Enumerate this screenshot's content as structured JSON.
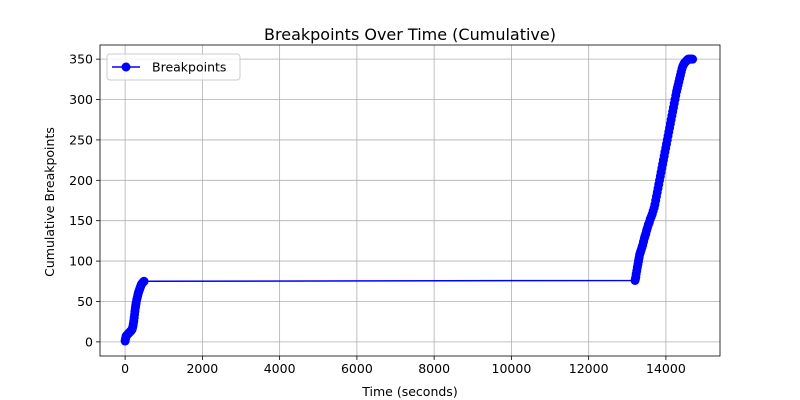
{
  "chart_data": {
    "type": "line",
    "title": "Breakpoints Over Time (Cumulative)",
    "xlabel": "Time (seconds)",
    "ylabel": "Cumulative Breakpoints",
    "xlim": [
      -650,
      15400
    ],
    "ylim": [
      -17.5,
      367.5
    ],
    "x_ticks": [
      0,
      2000,
      4000,
      6000,
      8000,
      10000,
      12000,
      14000
    ],
    "y_ticks": [
      0,
      50,
      100,
      150,
      200,
      250,
      300,
      350
    ],
    "grid": true,
    "legend": "top-left",
    "series": [
      {
        "name": "Breakpoints",
        "color": "#0000ff",
        "marker": "circle",
        "x": [
          0,
          8,
          16,
          25,
          40,
          60,
          80,
          100,
          120,
          140,
          160,
          175,
          190,
          205,
          215,
          225,
          235,
          245,
          255,
          265,
          275,
          285,
          300,
          315,
          330,
          345,
          360,
          375,
          390,
          405,
          420,
          435,
          450,
          470,
          490,
          13200,
          13210,
          13220,
          13230,
          13245,
          13260,
          13275,
          13290,
          13305,
          13320,
          13340,
          13360,
          13380,
          13400,
          13420,
          13440,
          13460,
          13480,
          13500,
          13520,
          13545,
          13570,
          13595,
          13620,
          13645,
          13670,
          13695,
          13715,
          13735,
          13755,
          13775,
          13795,
          13815,
          13835,
          13855,
          13875,
          13895,
          13915,
          13935,
          13955,
          13975,
          13995,
          14015,
          14035,
          14055,
          14075,
          14095,
          14115,
          14135,
          14155,
          14175,
          14195,
          14215,
          14235,
          14255,
          14275,
          14295,
          14315,
          14335,
          14355,
          14375,
          14395,
          14415,
          14435,
          14455,
          14475,
          14495,
          14515,
          14535,
          14555,
          14575,
          14595,
          14615,
          14635,
          14655,
          14675,
          14690
        ],
        "y": [
          1,
          3,
          5,
          7,
          8,
          9,
          10,
          11,
          12,
          13,
          14,
          15,
          17,
          20,
          23,
          26,
          30,
          34,
          38,
          42,
          45,
          48,
          52,
          55,
          58,
          61,
          63,
          65,
          67,
          69,
          71,
          72,
          73,
          74,
          75,
          76,
          78,
          80,
          84,
          88,
          92,
          96,
          100,
          104,
          108,
          111,
          114,
          117,
          120,
          124,
          128,
          131,
          134,
          138,
          141,
          145,
          148,
          152,
          155,
          158,
          162,
          166,
          170,
          175,
          180,
          185,
          190,
          195,
          200,
          205,
          210,
          215,
          220,
          225,
          230,
          235,
          240,
          245,
          250,
          255,
          260,
          265,
          270,
          275,
          280,
          285,
          290,
          295,
          300,
          305,
          310,
          314,
          318,
          322,
          326,
          330,
          334,
          338,
          341,
          343,
          345,
          346,
          347,
          348,
          349,
          350,
          350,
          350,
          350,
          350,
          350,
          350
        ]
      }
    ]
  }
}
